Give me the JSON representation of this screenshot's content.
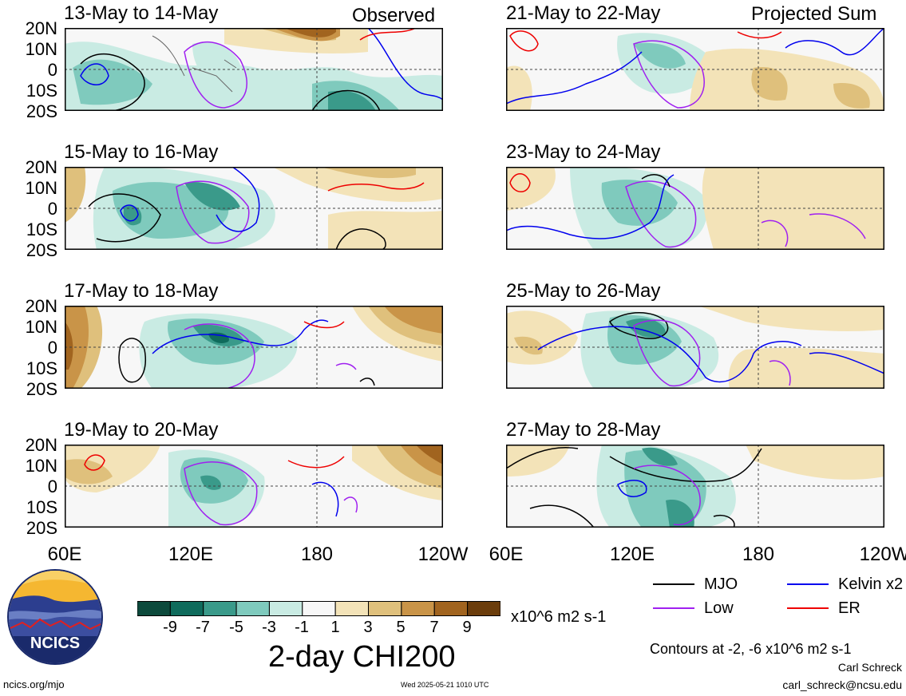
{
  "header": {
    "observed_label": "Observed",
    "projected_label": "Projected Sum"
  },
  "panels": [
    {
      "title": "13-May to 14-May"
    },
    {
      "title": "15-May to 16-May"
    },
    {
      "title": "17-May to 18-May"
    },
    {
      "title": "19-May to 20-May"
    },
    {
      "title": "21-May to 22-May"
    },
    {
      "title": "23-May to 24-May"
    },
    {
      "title": "25-May to 26-May"
    },
    {
      "title": "27-May to 28-May"
    }
  ],
  "axes": {
    "lat_labels": [
      "20N",
      "10N",
      "0",
      "10S",
      "20S"
    ],
    "lon_labels": [
      "60E",
      "120E",
      "180",
      "120W"
    ]
  },
  "colorbar": {
    "ticks": [
      "-9",
      "-7",
      "-5",
      "-3",
      "-1",
      "1",
      "3",
      "5",
      "7",
      "9"
    ],
    "colors": [
      "#0d4a3c",
      "#0f6b5c",
      "#3a9a8a",
      "#7fcabd",
      "#c9ebe3",
      "#f7f7f7",
      "#f3e3b8",
      "#dfc07c",
      "#c99448",
      "#a1641f",
      "#6b3d0c"
    ],
    "units": "x10^6 m2 s-1"
  },
  "title": "2-day CHI200",
  "legend": [
    {
      "label": "MJO",
      "color": "#000000"
    },
    {
      "label": "Kelvin x2",
      "color": "#0000ee"
    },
    {
      "label": "Low",
      "color": "#a020f0"
    },
    {
      "label": "ER",
      "color": "#ee0000"
    }
  ],
  "contour_note": "Contours at -2, -6 x10^6 m2 s-1",
  "footer": {
    "author": "Carl Schreck",
    "email": "carl_schreck@ncsu.edu",
    "site": "ncics.org/mjo",
    "timestamp": "Wed 2025-05-21 1010 UTC"
  },
  "logo": {
    "text": "NCICS"
  }
}
